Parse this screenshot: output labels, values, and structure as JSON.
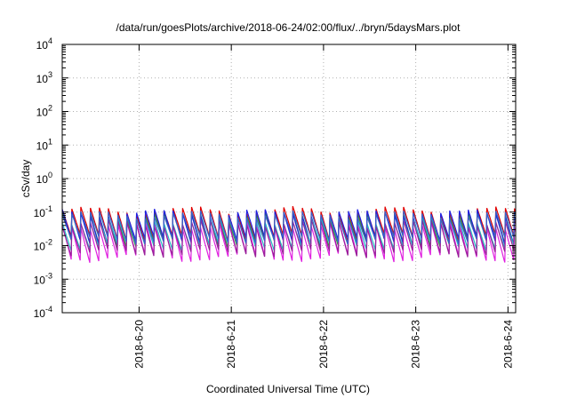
{
  "chart_data": {
    "type": "line",
    "title": "/data/run/goesPlots/archive/2018-06-24/02:00/flux/../bryn/5daysMars.plot",
    "xlabel": "Coordinated Universal Time (UTC)",
    "ylabel": "cSv/day",
    "yscale": "log",
    "ylim": [
      0.0001,
      10000
    ],
    "y_ticks": [
      {
        "value": 0.0001,
        "base": "10",
        "exp": "-4"
      },
      {
        "value": 0.001,
        "base": "10",
        "exp": "-3"
      },
      {
        "value": 0.01,
        "base": "10",
        "exp": "-2"
      },
      {
        "value": 0.1,
        "base": "10",
        "exp": "-1"
      },
      {
        "value": 1,
        "base": "10",
        "exp": "0"
      },
      {
        "value": 10,
        "base": "10",
        "exp": "1"
      },
      {
        "value": 100,
        "base": "10",
        "exp": "2"
      },
      {
        "value": 1000,
        "base": "10",
        "exp": "3"
      },
      {
        "value": 10000,
        "base": "10",
        "exp": "4"
      }
    ],
    "xlim": [
      "2018-06-19 04:00",
      "2018-06-24 02:00"
    ],
    "x_ticks": [
      "2018-6-20",
      "2018-6-21",
      "2018-6-22",
      "2018-6-23",
      "2018-6-24"
    ],
    "grid": true,
    "legend": "none",
    "series": [
      {
        "color": "#e00000",
        "peak": 0.12,
        "trough": 0.016
      },
      {
        "color": "#2d9c3a",
        "peak": 0.085,
        "trough": 0.011
      },
      {
        "color": "#2020e0",
        "peak": 0.1,
        "trough": 0.013
      },
      {
        "color": "#e020e0",
        "peak": 0.045,
        "trough": 0.004
      },
      {
        "color": "#20c0c0",
        "peak": 0.06,
        "trough": 0.009
      },
      {
        "color": "#9a1f9a",
        "peak": 0.05,
        "trough": 0.0055
      },
      {
        "color": "#3a5fc8",
        "peak": 0.09,
        "trough": 0.014
      }
    ],
    "cycle_hours": 2.4
  }
}
